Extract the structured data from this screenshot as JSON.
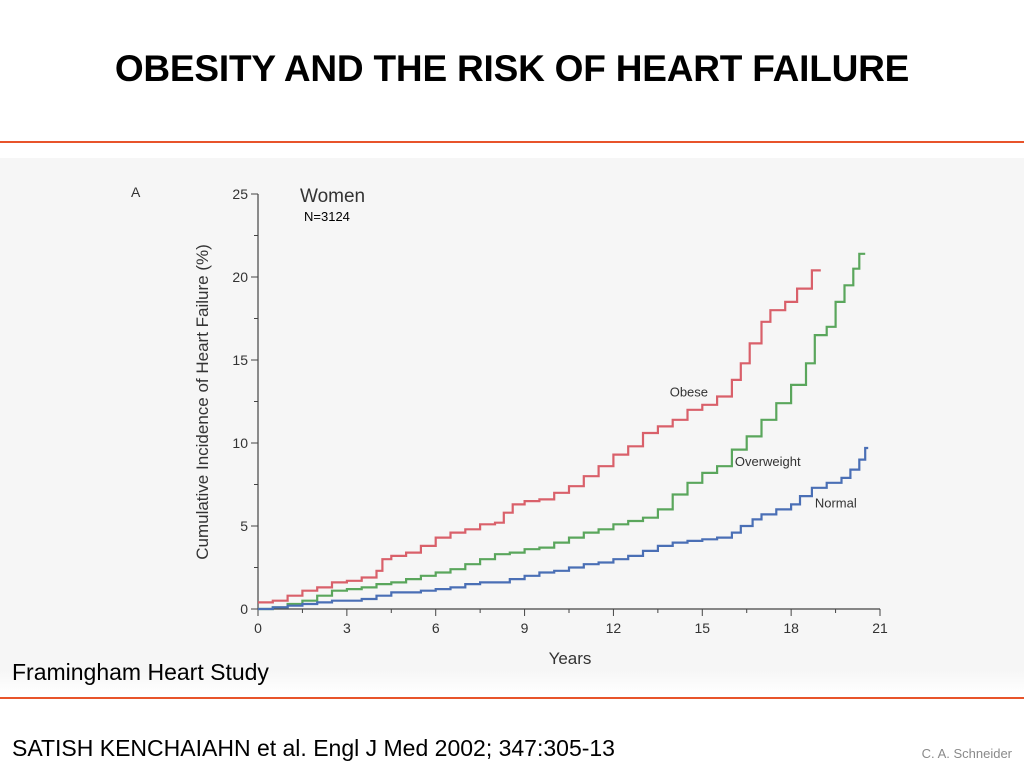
{
  "slide": {
    "title": "OBESITY AND THE RISK OF HEART FAILURE",
    "study_label": "Framingham Heart Study",
    "citation": "SATISH KENCHAIAHN et al. Engl J Med 2002; 347:305-13",
    "author": "C. A. Schneider",
    "accent_color": "#e8542b"
  },
  "chart_data": {
    "type": "line",
    "panel_label": "A",
    "subgroup": "Women",
    "sample_size": "N=3124",
    "xlabel": "Years",
    "ylabel": "Cumulative Incidence of Heart Failure (%)",
    "xlim": [
      0,
      21
    ],
    "ylim": [
      0,
      25
    ],
    "x_ticks": [
      0,
      3,
      6,
      9,
      12,
      15,
      18,
      21
    ],
    "y_ticks": [
      0,
      5,
      10,
      15,
      20,
      25
    ],
    "grid": false,
    "step": true,
    "series": [
      {
        "name": "Obese",
        "color": "#d9606a",
        "points": [
          [
            0,
            0.4
          ],
          [
            0.5,
            0.5
          ],
          [
            1,
            0.8
          ],
          [
            1.5,
            1.1
          ],
          [
            2,
            1.3
          ],
          [
            2.5,
            1.6
          ],
          [
            3,
            1.7
          ],
          [
            3.5,
            1.9
          ],
          [
            4,
            2.3
          ],
          [
            4.2,
            3.0
          ],
          [
            4.5,
            3.2
          ],
          [
            5,
            3.4
          ],
          [
            5.5,
            3.8
          ],
          [
            6,
            4.3
          ],
          [
            6.5,
            4.6
          ],
          [
            7,
            4.8
          ],
          [
            7.5,
            5.1
          ],
          [
            8,
            5.2
          ],
          [
            8.3,
            5.8
          ],
          [
            8.6,
            6.3
          ],
          [
            9,
            6.5
          ],
          [
            9.5,
            6.6
          ],
          [
            10,
            7.0
          ],
          [
            10.5,
            7.4
          ],
          [
            11,
            8.0
          ],
          [
            11.5,
            8.6
          ],
          [
            12,
            9.3
          ],
          [
            12.5,
            9.8
          ],
          [
            13,
            10.6
          ],
          [
            13.5,
            11.0
          ],
          [
            14,
            11.4
          ],
          [
            14.5,
            12.0
          ],
          [
            15,
            12.3
          ],
          [
            15.5,
            12.8
          ],
          [
            16,
            13.8
          ],
          [
            16.3,
            14.8
          ],
          [
            16.6,
            16.0
          ],
          [
            17,
            17.3
          ],
          [
            17.3,
            18.0
          ],
          [
            17.8,
            18.5
          ],
          [
            18.2,
            19.3
          ],
          [
            18.7,
            20.4
          ],
          [
            19.0,
            20.4
          ]
        ]
      },
      {
        "name": "Overweight",
        "color": "#5aa65c",
        "points": [
          [
            0,
            0.0
          ],
          [
            0.5,
            0.1
          ],
          [
            1,
            0.3
          ],
          [
            1.5,
            0.5
          ],
          [
            2,
            0.8
          ],
          [
            2.5,
            1.1
          ],
          [
            3,
            1.2
          ],
          [
            3.5,
            1.3
          ],
          [
            4,
            1.5
          ],
          [
            4.5,
            1.6
          ],
          [
            5,
            1.8
          ],
          [
            5.5,
            2.0
          ],
          [
            6,
            2.2
          ],
          [
            6.5,
            2.4
          ],
          [
            7,
            2.7
          ],
          [
            7.5,
            3.0
          ],
          [
            8,
            3.3
          ],
          [
            8.5,
            3.4
          ],
          [
            9,
            3.6
          ],
          [
            9.5,
            3.7
          ],
          [
            10,
            4.0
          ],
          [
            10.5,
            4.3
          ],
          [
            11,
            4.6
          ],
          [
            11.5,
            4.8
          ],
          [
            12,
            5.1
          ],
          [
            12.5,
            5.3
          ],
          [
            13,
            5.5
          ],
          [
            13.5,
            6.0
          ],
          [
            14,
            6.9
          ],
          [
            14.5,
            7.6
          ],
          [
            15,
            8.2
          ],
          [
            15.5,
            8.6
          ],
          [
            16,
            9.6
          ],
          [
            16.5,
            10.4
          ],
          [
            17,
            11.4
          ],
          [
            17.5,
            12.4
          ],
          [
            18,
            13.5
          ],
          [
            18.5,
            14.8
          ],
          [
            18.8,
            16.5
          ],
          [
            19.2,
            17.0
          ],
          [
            19.5,
            18.5
          ],
          [
            19.8,
            19.5
          ],
          [
            20.1,
            20.5
          ],
          [
            20.3,
            21.4
          ],
          [
            20.5,
            21.4
          ]
        ]
      },
      {
        "name": "Normal",
        "color": "#4a6fb5",
        "points": [
          [
            0,
            0.0
          ],
          [
            0.5,
            0.1
          ],
          [
            1,
            0.2
          ],
          [
            1.5,
            0.3
          ],
          [
            2,
            0.4
          ],
          [
            2.5,
            0.5
          ],
          [
            3,
            0.5
          ],
          [
            3.5,
            0.6
          ],
          [
            4,
            0.8
          ],
          [
            4.5,
            1.0
          ],
          [
            5,
            1.0
          ],
          [
            5.5,
            1.1
          ],
          [
            6,
            1.2
          ],
          [
            6.5,
            1.3
          ],
          [
            7,
            1.5
          ],
          [
            7.5,
            1.6
          ],
          [
            8,
            1.6
          ],
          [
            8.5,
            1.8
          ],
          [
            9,
            2.0
          ],
          [
            9.5,
            2.2
          ],
          [
            10,
            2.3
          ],
          [
            10.5,
            2.5
          ],
          [
            11,
            2.7
          ],
          [
            11.5,
            2.8
          ],
          [
            12,
            3.0
          ],
          [
            12.5,
            3.2
          ],
          [
            13,
            3.5
          ],
          [
            13.5,
            3.8
          ],
          [
            14,
            4.0
          ],
          [
            14.5,
            4.1
          ],
          [
            15,
            4.2
          ],
          [
            15.5,
            4.3
          ],
          [
            16,
            4.6
          ],
          [
            16.3,
            5.0
          ],
          [
            16.7,
            5.4
          ],
          [
            17,
            5.7
          ],
          [
            17.5,
            6.0
          ],
          [
            18,
            6.3
          ],
          [
            18.3,
            6.8
          ],
          [
            18.7,
            7.3
          ],
          [
            19.2,
            7.6
          ],
          [
            19.7,
            7.9
          ],
          [
            20.0,
            8.4
          ],
          [
            20.3,
            9.0
          ],
          [
            20.5,
            9.7
          ],
          [
            20.6,
            9.7
          ]
        ]
      }
    ],
    "annotations": [
      "Obese",
      "Overweight",
      "Normal"
    ]
  }
}
